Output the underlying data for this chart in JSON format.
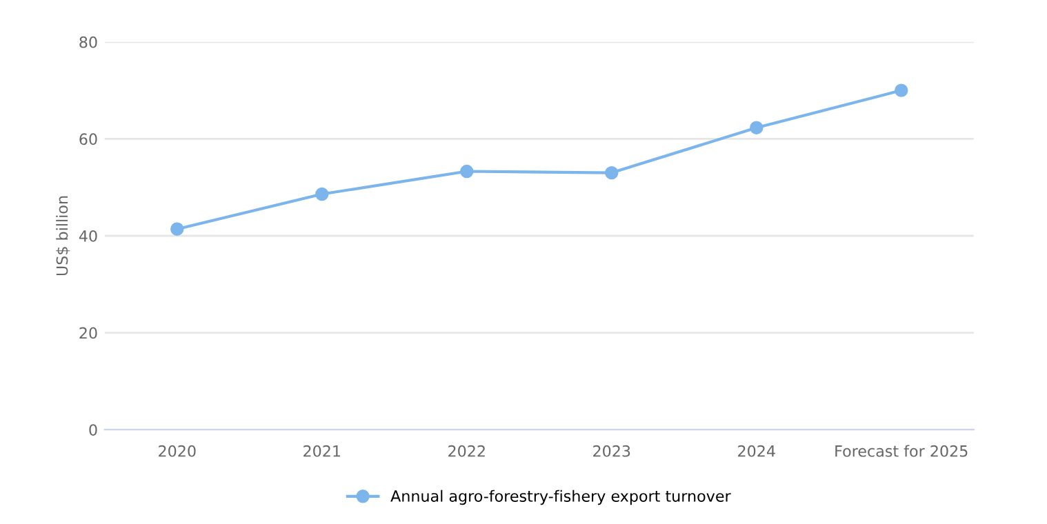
{
  "chart_data": {
    "type": "line",
    "ylabel": "US$ billion",
    "categories": [
      "2020",
      "2021",
      "2022",
      "2023",
      "2024",
      "Forecast for 2025"
    ],
    "series": [
      {
        "name": "Annual agro-forestry-fishery export turnover",
        "color": "#7cb5ec",
        "values": [
          41.4,
          48.6,
          53.3,
          53.0,
          62.3,
          70.0
        ]
      }
    ],
    "ylim": [
      0,
      80
    ],
    "yticks": [
      0,
      20,
      40,
      60,
      80
    ],
    "grid": "y",
    "legend": "bottom",
    "marker": "circle",
    "line_style": "solid"
  }
}
